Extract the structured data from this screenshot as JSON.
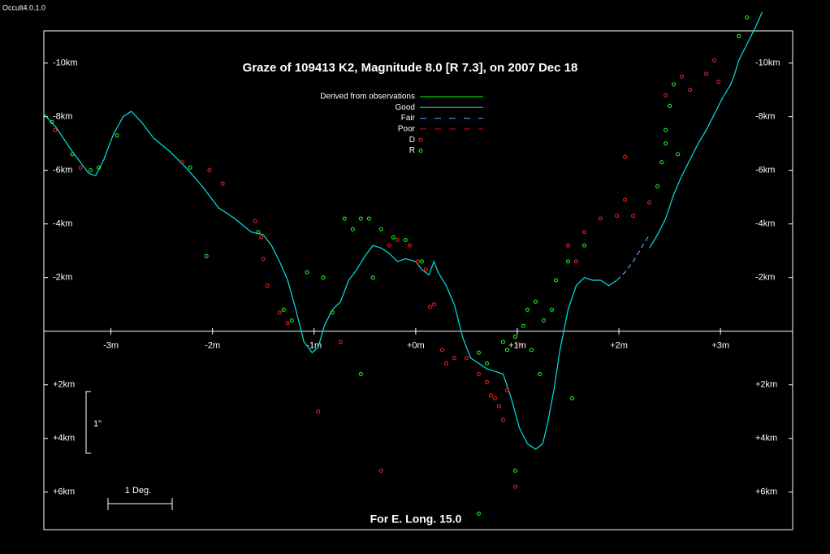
{
  "window": {
    "title": "Occult4.0.1.0"
  },
  "chart_data": {
    "type": "line",
    "title": "Graze of  109413 K2,  Magnitude 8.0 [R 7.3],  on 2007 Dec 18",
    "annotations": {
      "footer": "For E. Long. 15.0",
      "scale_vertical": "1\"",
      "scale_horizontal": "1 Deg."
    },
    "xlim": [
      -3.66,
      3.71
    ],
    "ylim": [
      7.4,
      -11.2
    ],
    "xticks": [
      {
        "value": -3,
        "label": "-3m"
      },
      {
        "value": -2,
        "label": "-2m"
      },
      {
        "value": -1,
        "label": "-1m"
      },
      {
        "value": 0,
        "label": "+0m"
      },
      {
        "value": 1,
        "label": "+1m"
      },
      {
        "value": 2,
        "label": "+2m"
      },
      {
        "value": 3,
        "label": "+3m"
      }
    ],
    "yticks": [
      {
        "value": -10,
        "label": "-10km"
      },
      {
        "value": -8,
        "label": "-8km"
      },
      {
        "value": -6,
        "label": "-6km"
      },
      {
        "value": -4,
        "label": "-4km"
      },
      {
        "value": -2,
        "label": "-2km"
      },
      {
        "value": 2,
        "label": "+2km"
      },
      {
        "value": 4,
        "label": "+4km"
      },
      {
        "value": 6,
        "label": "+6km"
      }
    ],
    "series": [
      {
        "name": "Derived from observations",
        "color": "#00ff00",
        "style": "line",
        "x": [],
        "values": []
      },
      {
        "name": "Good",
        "color": "#00e5e5",
        "style": "line",
        "x": [
          -3.66,
          -3.54,
          -3.38,
          -3.22,
          -3.15,
          -3.07,
          -2.98,
          -2.88,
          -2.8,
          -2.7,
          -2.58,
          -2.42,
          -2.26,
          -2.1,
          -1.94,
          -1.78,
          -1.62,
          -1.5,
          -1.42,
          -1.34,
          -1.26,
          -1.18,
          -1.1,
          -1.02,
          -0.96,
          -0.9,
          -0.82,
          -0.74,
          -0.66,
          -0.58,
          -0.5,
          -0.42,
          -0.34,
          -0.26,
          -0.18,
          -0.1,
          0,
          0.06,
          0.13,
          0.18,
          0.22,
          0.3,
          0.38,
          0.46,
          0.54,
          0.62,
          0.7,
          0.78,
          0.86,
          0.94,
          1.02,
          1.1,
          1.18,
          1.25,
          1.3,
          1.36,
          1.42,
          1.5,
          1.58,
          1.66,
          1.74,
          1.82,
          1.9,
          1.98,
          2.06,
          2.14,
          2.22,
          2.3,
          2.38,
          2.46,
          2.54,
          2.62,
          2.7,
          2.78,
          2.86,
          2.94,
          3.02,
          3.1,
          3.14,
          3.18,
          3.26,
          3.34,
          3.41
        ],
        "values": [
          -8.1,
          -7.6,
          -6.7,
          -5.9,
          -5.8,
          -6.4,
          -7.3,
          -8.0,
          -8.2,
          -7.8,
          -7.2,
          -6.7,
          -6.1,
          -5.4,
          -4.6,
          -4.2,
          -3.7,
          -3.6,
          -3.2,
          -2.6,
          -1.9,
          -0.8,
          0.4,
          0.8,
          0.6,
          -0.2,
          -0.8,
          -1.1,
          -1.9,
          -2.3,
          -2.8,
          -3.2,
          -3.1,
          -2.9,
          -2.6,
          -2.7,
          -2.6,
          -2.3,
          -2.1,
          -2.6,
          -2.2,
          -1.7,
          -1.0,
          0.2,
          1.0,
          1.2,
          1.4,
          1.5,
          1.6,
          2.5,
          3.6,
          4.2,
          4.4,
          4.2,
          3.4,
          2.2,
          0.7,
          -0.8,
          -1.7,
          -2.0,
          -1.9,
          -1.9,
          -1.7,
          -1.9,
          null,
          null,
          null,
          -3.1,
          -3.6,
          -4.2,
          -5.1,
          -5.8,
          -6.4,
          -7.0,
          -7.5,
          -8.1,
          -8.7,
          -9.2,
          -9.6,
          -10.1,
          -10.7,
          -11.3,
          -11.9
        ]
      },
      {
        "name": "Fair",
        "color": "#4da6ff",
        "style": "dashed",
        "x": [
          1.98,
          2.06,
          2.14,
          2.22,
          2.3
        ],
        "values": [
          -1.9,
          -2.2,
          -2.6,
          -3.1,
          -3.6
        ]
      },
      {
        "name": "Poor",
        "color": "#ff0000",
        "style": "dashed",
        "x": [],
        "values": []
      },
      {
        "name": "D",
        "color": "#ff2020",
        "style": "marker",
        "x": [
          -3.55,
          -3.3,
          -2.3,
          -2.03,
          -1.9,
          -1.58,
          -1.52,
          -1.5,
          -1.46,
          -1.34,
          -1.26,
          -0.96,
          -0.74,
          -0.34,
          -0.26,
          -0.18,
          -0.06,
          0.02,
          0.1,
          0.14,
          0.18,
          0.26,
          0.3,
          0.38,
          0.5,
          0.62,
          0.7,
          0.74,
          0.78,
          0.82,
          0.86,
          0.9,
          1.02,
          0.98,
          1.5,
          1.58,
          1.66,
          1.82,
          1.98,
          2.06,
          2.14,
          2.3,
          2.46,
          2.62,
          2.7,
          2.86,
          2.94,
          2.98,
          2.06
        ],
        "values": [
          -7.5,
          -6.1,
          -6.3,
          -6.0,
          -5.5,
          -4.1,
          -3.5,
          -2.7,
          -1.7,
          -0.7,
          -0.3,
          3.0,
          0.4,
          5.2,
          -3.2,
          -3.4,
          -3.2,
          -2.6,
          -2.3,
          -0.9,
          -1.0,
          0.7,
          1.2,
          1.0,
          1.0,
          1.6,
          1.9,
          2.4,
          2.5,
          2.8,
          3.3,
          2.2,
          0.5,
          5.8,
          -3.2,
          -2.6,
          -3.7,
          -4.2,
          -4.3,
          -4.9,
          -4.3,
          -4.8,
          -8.8,
          -9.5,
          -9.0,
          -9.6,
          -10.1,
          -9.3,
          -6.5
        ]
      },
      {
        "name": "R",
        "color": "#20ff20",
        "style": "marker",
        "x": [
          -3.58,
          -3.38,
          -3.2,
          -3.12,
          -2.94,
          -2.22,
          -2.06,
          -1.55,
          -1.3,
          -1.22,
          -1.07,
          -0.91,
          -0.82,
          -0.7,
          -0.62,
          -0.54,
          -0.46,
          -0.42,
          -0.34,
          -0.22,
          -0.1,
          0.06,
          -0.54,
          0.62,
          0.7,
          0.86,
          0.9,
          0.98,
          1.06,
          1.1,
          1.14,
          1.18,
          1.22,
          1.26,
          1.34,
          1.38,
          1.5,
          1.54,
          1.66,
          2.38,
          2.42,
          2.46,
          2.5,
          2.54,
          2.46,
          2.58,
          3.18,
          3.26,
          0.98,
          0.62
        ],
        "values": [
          -7.8,
          -6.6,
          -6.0,
          -6.1,
          -7.3,
          -6.1,
          -2.8,
          -3.7,
          -0.8,
          -0.4,
          -2.2,
          -2.0,
          -0.7,
          -4.2,
          -3.8,
          -4.2,
          -4.2,
          -2.0,
          -3.8,
          -3.5,
          -3.4,
          -2.6,
          1.6,
          0.8,
          1.2,
          0.4,
          0.7,
          0.2,
          -0.2,
          -0.8,
          0.7,
          -1.1,
          1.6,
          -0.4,
          -0.8,
          -1.9,
          -2.6,
          2.5,
          -3.2,
          -5.4,
          -6.3,
          -7.5,
          -8.4,
          -9.2,
          -7.0,
          -6.6,
          -11.0,
          -11.7,
          5.2,
          6.8
        ]
      }
    ]
  }
}
